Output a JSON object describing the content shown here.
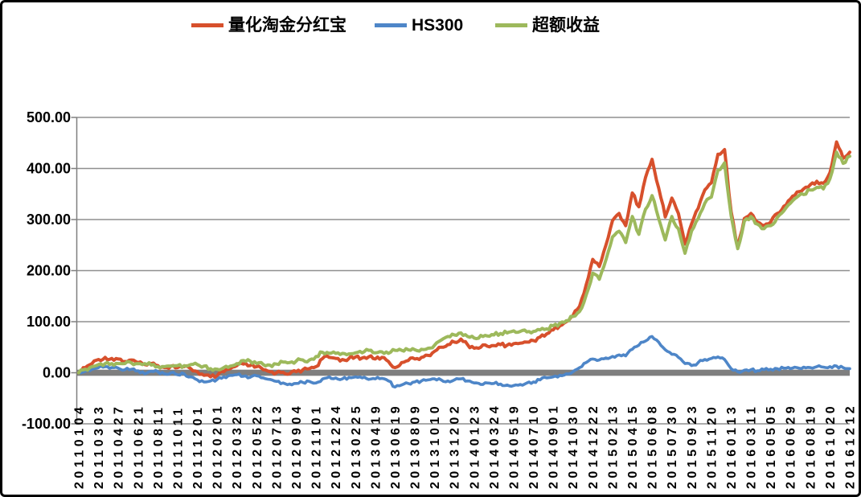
{
  "chart_data": {
    "type": "line",
    "title": "",
    "xlabel": "",
    "ylabel": "",
    "ylim": [
      -100,
      500
    ],
    "grid": "horizontal",
    "legend_position": "top-center",
    "background_color": "#FFFFFF",
    "gridline_color": "#8F8F8F",
    "axis_line_color": "#7F7F7F",
    "zero_band_color": "#7F7F7F",
    "axis_text_color": "#000000",
    "y_ticks": [
      {
        "label": "500.00",
        "value": 500
      },
      {
        "label": "400.00",
        "value": 400
      },
      {
        "label": "300.00",
        "value": 300
      },
      {
        "label": "200.00",
        "value": 200
      },
      {
        "label": "100.00",
        "value": 100
      },
      {
        "label": "0.00",
        "value": 0
      },
      {
        "label": "-100.00",
        "value": -100
      }
    ],
    "x_tick_labels": [
      "20110104",
      "20110303",
      "20110427",
      "20110621",
      "20110811",
      "20111011",
      "20111201",
      "20120201",
      "20120323",
      "20120522",
      "20120713",
      "20120904",
      "20121101",
      "20121224",
      "20130225",
      "20130419",
      "20130619",
      "20130809",
      "20131010",
      "20131202",
      "20140123",
      "20140324",
      "20140519",
      "20140710",
      "20140901",
      "20141030",
      "20141222",
      "20150213",
      "20150415",
      "20150608",
      "20150730",
      "20150923",
      "20151120",
      "20160113",
      "20160311",
      "20160505",
      "20160629",
      "20160819",
      "20161020",
      "20161212"
    ],
    "points_per_tick_interval": 3,
    "series": [
      {
        "key": "fund",
        "name": "量化淘金分红宝",
        "color": "#D7502C",
        "line_width": 4,
        "values": [
          0,
          10,
          18,
          26,
          30,
          28,
          27,
          22,
          25,
          20,
          16,
          18,
          14,
          10,
          13,
          10,
          12,
          8,
          2,
          -5,
          -8,
          -6,
          2,
          8,
          14,
          17,
          14,
          12,
          6,
          2,
          0,
          1,
          -2,
          2,
          6,
          8,
          12,
          28,
          30,
          28,
          26,
          28,
          31,
          29,
          31,
          27,
          30,
          22,
          10,
          20,
          24,
          27,
          30,
          34,
          42,
          50,
          55,
          60,
          66,
          55,
          48,
          50,
          52,
          53,
          55,
          54,
          57,
          58,
          60,
          63,
          70,
          76,
          84,
          92,
          100,
          112,
          130,
          172,
          222,
          208,
          250,
          298,
          312,
          288,
          352,
          325,
          382,
          418,
          362,
          305,
          342,
          312,
          252,
          292,
          322,
          358,
          372,
          428,
          437,
          315,
          245,
          302,
          312,
          295,
          288,
          295,
          312,
          326,
          340,
          354,
          360,
          368,
          375,
          371,
          392,
          452,
          420,
          432
        ]
      },
      {
        "key": "hs300",
        "name": "HS300",
        "color": "#4E86C8",
        "line_width": 3.6,
        "values": [
          0,
          3,
          7,
          10,
          12,
          10,
          9,
          6,
          7,
          4,
          -2,
          3,
          2,
          -2,
          0,
          -4,
          -2,
          -8,
          -14,
          -18,
          -16,
          -13,
          -8,
          -5,
          -4,
          -7,
          -9,
          -6,
          -10,
          -13,
          -17,
          -20,
          -22,
          -21,
          -19,
          -17,
          -20,
          -12,
          -8,
          -10,
          -12,
          -9,
          -8,
          -10,
          -13,
          -12,
          -11,
          -16,
          -28,
          -24,
          -21,
          -18,
          -16,
          -14,
          -12,
          -14,
          -16,
          -14,
          -12,
          -16,
          -20,
          -23,
          -20,
          -21,
          -22,
          -24,
          -25,
          -23,
          -20,
          -18,
          -14,
          -10,
          -8,
          -5,
          -2,
          2,
          10,
          20,
          27,
          25,
          29,
          32,
          35,
          33,
          46,
          54,
          62,
          71,
          60,
          45,
          36,
          30,
          18,
          14,
          20,
          26,
          28,
          31,
          26,
          8,
          2,
          5,
          6,
          4,
          6,
          7,
          8,
          9,
          8,
          10,
          11,
          10,
          12,
          11,
          12,
          13,
          10,
          8
        ]
      },
      {
        "key": "excess",
        "name": "超额收益",
        "color": "#9DB95C",
        "line_width": 4,
        "values": [
          0,
          7,
          12,
          16,
          18,
          18,
          18,
          18,
          19,
          18,
          18,
          15,
          12,
          12,
          13,
          14,
          14,
          16,
          16,
          13,
          8,
          7,
          10,
          13,
          18,
          24,
          23,
          18,
          16,
          15,
          17,
          21,
          20,
          23,
          25,
          25,
          32,
          40,
          38,
          38,
          38,
          37,
          39,
          39,
          44,
          39,
          41,
          38,
          44,
          44,
          45,
          45,
          46,
          48,
          54,
          64,
          71,
          74,
          78,
          71,
          68,
          73,
          72,
          74,
          77,
          78,
          82,
          81,
          80,
          81,
          84,
          86,
          92,
          97,
          102,
          110,
          120,
          152,
          195,
          183,
          221,
          266,
          277,
          255,
          306,
          271,
          320,
          347,
          302,
          260,
          306,
          282,
          234,
          278,
          302,
          332,
          344,
          397,
          411,
          307,
          243,
          297,
          306,
          291,
          282,
          288,
          304,
          317,
          332,
          344,
          349,
          358,
          363,
          360,
          380,
          432,
          410,
          424
        ]
      }
    ]
  }
}
